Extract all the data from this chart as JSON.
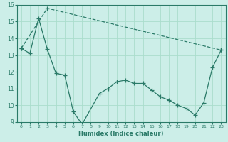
{
  "xlabel": "Humidex (Indice chaleur)",
  "bg_color": "#cceee8",
  "grid_color": "#aaddcc",
  "line_color": "#2a7a68",
  "xlim": [
    -0.5,
    23.5
  ],
  "ylim": [
    9,
    16
  ],
  "xticks": [
    0,
    1,
    2,
    3,
    4,
    5,
    6,
    7,
    8,
    9,
    10,
    11,
    12,
    13,
    14,
    15,
    16,
    17,
    18,
    19,
    20,
    21,
    22,
    23
  ],
  "yticks": [
    9,
    10,
    11,
    12,
    13,
    14,
    15,
    16
  ],
  "line1_x": [
    0,
    3,
    23
  ],
  "line1_y": [
    13.4,
    15.8,
    13.3
  ],
  "line2_x": [
    0,
    1,
    2,
    3,
    4,
    5,
    6,
    7,
    9,
    10,
    11,
    12,
    13,
    14,
    15,
    16,
    17,
    18,
    19,
    20,
    21,
    22,
    23
  ],
  "line2_y": [
    13.4,
    13.1,
    15.2,
    13.35,
    11.9,
    11.8,
    9.6,
    8.85,
    10.7,
    11.0,
    11.4,
    11.5,
    11.3,
    11.3,
    10.9,
    10.5,
    10.3,
    10.0,
    9.8,
    9.4,
    10.15,
    12.25,
    13.3
  ]
}
